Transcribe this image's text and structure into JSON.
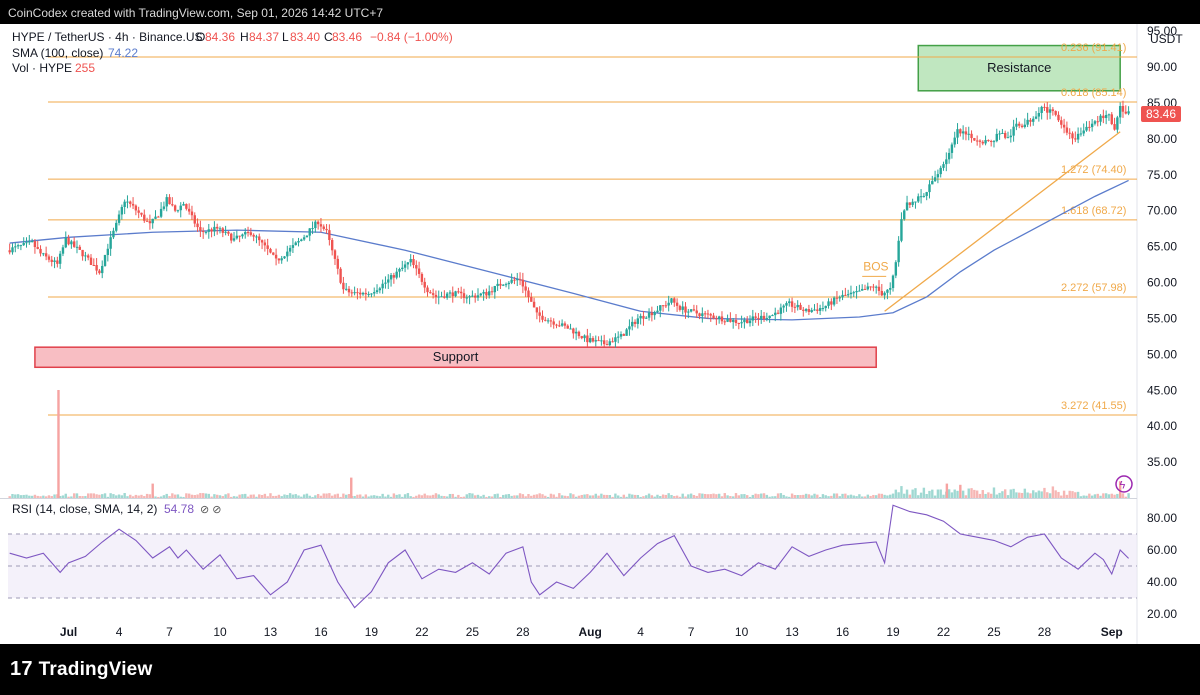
{
  "header": {
    "attribution": "CoinCodex created with TradingView.com, Sep 01, 2026 14:42 UTC+7",
    "symbol": "HYPE / TetherUS · 4h · Binance.US",
    "ohlc": {
      "o_label": "O",
      "o": "84.36",
      "h_label": "H",
      "h": "84.37",
      "l_label": "L",
      "l": "83.40",
      "c_label": "C",
      "c": "83.46",
      "change": "−0.84 (−1.00%)"
    },
    "sma_label": "SMA (100, close)",
    "sma_value": "74.22",
    "vol_label": "Vol · HYPE",
    "vol_value": "255",
    "rsi_label": "RSI (14, close, SMA, 14, 2)",
    "rsi_value": "54.78",
    "rsi_extra": "⊘ ⊘"
  },
  "footer": {
    "brand": "TradingView",
    "brand_mark": "17"
  },
  "colors": {
    "up": "#26a69a",
    "down": "#ef5350",
    "sma": "#5b7ccc",
    "fib": "#f0a94a",
    "rsi": "#7e57c2",
    "support_fill": "#f7b3b9",
    "support_stroke": "#e0404a",
    "resistance_fill": "#b5e3b5",
    "resistance_stroke": "#43a047",
    "price_badge": "#ef5350"
  },
  "chart_data": {
    "type": "candlestick",
    "currency_label": "USDT",
    "price_axis": {
      "min": 30,
      "max": 96,
      "ticks": [
        "95.00",
        "90.00",
        "85.00",
        "80.00",
        "75.00",
        "70.00",
        "65.00",
        "60.00",
        "55.00",
        "50.00",
        "45.00",
        "40.00",
        "35.00"
      ]
    },
    "last_price": "83.46",
    "x_axis_ticks": [
      {
        "label": "Jul",
        "day": 0
      },
      {
        "label": "4",
        "day": 3
      },
      {
        "label": "7",
        "day": 6
      },
      {
        "label": "10",
        "day": 9
      },
      {
        "label": "13",
        "day": 12
      },
      {
        "label": "16",
        "day": 15
      },
      {
        "label": "19",
        "day": 18
      },
      {
        "label": "22",
        "day": 21
      },
      {
        "label": "25",
        "day": 24
      },
      {
        "label": "28",
        "day": 27
      },
      {
        "label": "Aug",
        "day": 31
      },
      {
        "label": "4",
        "day": 34
      },
      {
        "label": "7",
        "day": 37
      },
      {
        "label": "10",
        "day": 40
      },
      {
        "label": "13",
        "day": 43
      },
      {
        "label": "16",
        "day": 46
      },
      {
        "label": "19",
        "day": 49
      },
      {
        "label": "22",
        "day": 52
      },
      {
        "label": "25",
        "day": 55
      },
      {
        "label": "28",
        "day": 58
      },
      {
        "label": "Sep",
        "day": 62
      }
    ],
    "day_range": [
      -3.6,
      63.5
    ],
    "price_path": [
      [
        -3.5,
        64.5
      ],
      [
        -2,
        65.5
      ],
      [
        -1.5,
        64
      ],
      [
        -0.5,
        62.5
      ],
      [
        0,
        66
      ],
      [
        1,
        64
      ],
      [
        2,
        61.5
      ],
      [
        2.5,
        65
      ],
      [
        3,
        68
      ],
      [
        3.5,
        71.5
      ],
      [
        4,
        70.5
      ],
      [
        5,
        68
      ],
      [
        5.5,
        69.5
      ],
      [
        6,
        71.5
      ],
      [
        6.5,
        70
      ],
      [
        7,
        71
      ],
      [
        7.5,
        69
      ],
      [
        8,
        67
      ],
      [
        9,
        67.5
      ],
      [
        10,
        66
      ],
      [
        11,
        67
      ],
      [
        12,
        64.5
      ],
      [
        12.5,
        63
      ],
      [
        13,
        64
      ],
      [
        14,
        66
      ],
      [
        15,
        68.5
      ],
      [
        15.5,
        67
      ],
      [
        16,
        63
      ],
      [
        16.5,
        59
      ],
      [
        17,
        58.5
      ],
      [
        18,
        58.5
      ],
      [
        19,
        60
      ],
      [
        20,
        62
      ],
      [
        20.5,
        63
      ],
      [
        21,
        61
      ],
      [
        21.5,
        59
      ],
      [
        22,
        58
      ],
      [
        23,
        58.5
      ],
      [
        24,
        58
      ],
      [
        25,
        58.5
      ],
      [
        26,
        60
      ],
      [
        27,
        60.5
      ],
      [
        27.5,
        58
      ],
      [
        28,
        55.5
      ],
      [
        29,
        54.5
      ],
      [
        30,
        53.5
      ],
      [
        31,
        52
      ],
      [
        32,
        51.5
      ],
      [
        33,
        52.5
      ],
      [
        34,
        55
      ],
      [
        35,
        56
      ],
      [
        36,
        57.5
      ],
      [
        36.5,
        56.5
      ],
      [
        37,
        56
      ],
      [
        38,
        55.5
      ],
      [
        39,
        55
      ],
      [
        40,
        54.5
      ],
      [
        41,
        55
      ],
      [
        42,
        55.5
      ],
      [
        43,
        57
      ],
      [
        44,
        56
      ],
      [
        45,
        56.5
      ],
      [
        46,
        58
      ],
      [
        47,
        58.5
      ],
      [
        48,
        59.5
      ],
      [
        48.5,
        58.5
      ],
      [
        49,
        59
      ],
      [
        49.3,
        62
      ],
      [
        49.6,
        68
      ],
      [
        50,
        71
      ],
      [
        51,
        72
      ],
      [
        52,
        76
      ],
      [
        52.5,
        78
      ],
      [
        53,
        81
      ],
      [
        54,
        80
      ],
      [
        55,
        79.5
      ],
      [
        55.5,
        81
      ],
      [
        56,
        80
      ],
      [
        56.5,
        82
      ],
      [
        57,
        82
      ],
      [
        57.5,
        83
      ],
      [
        58,
        84.5
      ],
      [
        59,
        83
      ],
      [
        59.5,
        81
      ],
      [
        60,
        80
      ],
      [
        61,
        82
      ],
      [
        61.5,
        83
      ],
      [
        62,
        83.5
      ],
      [
        62.3,
        81
      ],
      [
        62.6,
        84.5
      ],
      [
        63,
        83.46
      ]
    ],
    "sma_path": [
      [
        -3.5,
        65.5
      ],
      [
        0,
        66.3
      ],
      [
        5,
        67.0
      ],
      [
        10,
        67.3
      ],
      [
        15,
        67.0
      ],
      [
        20,
        64.5
      ],
      [
        25,
        61.5
      ],
      [
        30,
        58.5
      ],
      [
        34,
        56
      ],
      [
        38,
        55
      ],
      [
        43,
        54.8
      ],
      [
        47,
        55.2
      ],
      [
        49,
        55.8
      ],
      [
        51,
        58
      ],
      [
        53,
        61.5
      ],
      [
        55,
        64.5
      ],
      [
        57,
        67
      ],
      [
        59,
        69.5
      ],
      [
        61,
        72
      ],
      [
        63,
        74.22
      ]
    ],
    "fib_levels": [
      {
        "ratio": "0.236",
        "price": "91.41",
        "value": 91.41
      },
      {
        "ratio": "0.618",
        "price": "85.14",
        "value": 85.14
      },
      {
        "ratio": "1.272",
        "price": "74.40",
        "value": 74.4
      },
      {
        "ratio": "1.618",
        "price": "68.72",
        "value": 68.72
      },
      {
        "ratio": "2.272",
        "price": "57.98",
        "value": 57.98
      },
      {
        "ratio": "3.272",
        "price": "41.55",
        "value": 41.55
      }
    ],
    "zones": [
      {
        "label": "Resistance",
        "price_low": 86.7,
        "price_high": 93.0,
        "day_start": 50.5,
        "day_end": 62.5
      },
      {
        "label": "Support",
        "price_low": 48.2,
        "price_high": 51.0,
        "day_start": -2.0,
        "day_end": 48.0
      }
    ],
    "annotation": {
      "label": "BOS",
      "day": 48.0,
      "price": 61.0
    },
    "trendline": {
      "from": [
        48.5,
        56.0
      ],
      "to": [
        62.5,
        81.0
      ]
    },
    "volume_spikes": [
      {
        "day": -0.6,
        "value": 90
      },
      {
        "day": 5,
        "value": 12
      },
      {
        "day": 16.8,
        "value": 17
      },
      {
        "day": 52.2,
        "value": 12
      },
      {
        "day": 53,
        "value": 11
      },
      {
        "day": 62.5,
        "value": 14
      }
    ],
    "rsi": {
      "ticks": [
        "80.00",
        "60.00",
        "40.00",
        "20.00"
      ],
      "range": [
        15,
        90
      ],
      "bands": [
        30,
        50,
        70
      ],
      "path": [
        [
          -3.5,
          58
        ],
        [
          -2.5,
          55
        ],
        [
          -1.5,
          58
        ],
        [
          -0.5,
          46
        ],
        [
          0,
          52
        ],
        [
          1,
          56
        ],
        [
          2,
          65
        ],
        [
          3,
          73
        ],
        [
          4,
          66
        ],
        [
          5,
          55
        ],
        [
          6,
          62
        ],
        [
          6.5,
          55
        ],
        [
          7,
          60
        ],
        [
          8,
          48
        ],
        [
          9,
          57
        ],
        [
          10,
          42
        ],
        [
          11,
          44
        ],
        [
          12,
          32
        ],
        [
          13,
          40
        ],
        [
          14,
          60
        ],
        [
          15,
          63
        ],
        [
          16,
          40
        ],
        [
          17,
          24
        ],
        [
          18,
          34
        ],
        [
          19,
          52
        ],
        [
          20,
          60
        ],
        [
          21,
          42
        ],
        [
          22,
          48
        ],
        [
          23,
          46
        ],
        [
          24,
          52
        ],
        [
          25,
          45
        ],
        [
          26,
          58
        ],
        [
          27,
          62
        ],
        [
          27.5,
          40
        ],
        [
          28,
          32
        ],
        [
          29,
          40
        ],
        [
          30,
          36
        ],
        [
          31,
          46
        ],
        [
          32,
          58
        ],
        [
          33,
          44
        ],
        [
          34,
          55
        ],
        [
          35,
          64
        ],
        [
          36,
          69
        ],
        [
          37,
          50
        ],
        [
          38,
          46
        ],
        [
          39,
          48
        ],
        [
          40,
          44
        ],
        [
          41,
          52
        ],
        [
          42,
          48
        ],
        [
          43,
          62
        ],
        [
          44,
          56
        ],
        [
          45,
          60
        ],
        [
          46,
          63
        ],
        [
          47,
          64
        ],
        [
          48,
          65
        ],
        [
          48.5,
          52
        ],
        [
          49,
          88
        ],
        [
          50,
          84
        ],
        [
          51,
          82
        ],
        [
          52,
          78
        ],
        [
          53,
          70
        ],
        [
          54,
          68
        ],
        [
          55,
          66
        ],
        [
          56,
          62
        ],
        [
          57,
          68
        ],
        [
          58,
          70
        ],
        [
          59,
          55
        ],
        [
          60,
          48
        ],
        [
          61,
          58
        ],
        [
          61.5,
          54
        ],
        [
          62,
          45
        ],
        [
          62.5,
          60
        ],
        [
          63,
          54.78
        ]
      ]
    }
  }
}
